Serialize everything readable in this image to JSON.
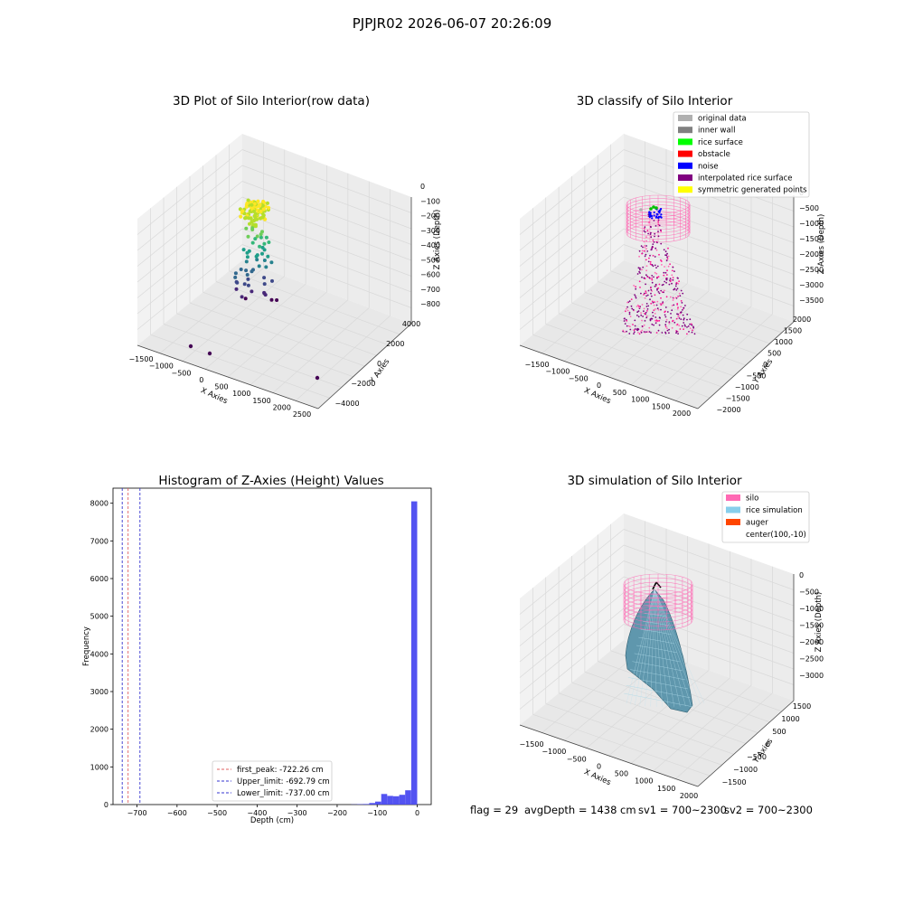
{
  "figure": {
    "suptitle": "PJPJR02 2026-06-07 20:26:09",
    "status": {
      "flag": "flag = 29",
      "avg_depth": "avgDepth = 1438 cm",
      "sv1": "sv1 = 700~2300",
      "sv2": "sv2 = 700~2300"
    }
  },
  "colors": {
    "pane": "#f2f2f2",
    "grid": "#d9d9d9",
    "hist_bar": "#4a4af0",
    "peak_line": "#e06060",
    "limit_line": "#3535d0",
    "silo": "#ff69b4",
    "rice_simulation": "#87ceeb",
    "auger": "#ff4500",
    "viridis_low": "#440154",
    "viridis_high": "#fde725"
  },
  "chart_data": [
    {
      "type": "scatter3d",
      "title": "3D Plot of Silo Interior(row data)",
      "xlabel": "X Axies",
      "ylabel": "Y Axies",
      "zlabel": "Z Axies (Depth)",
      "x_ticks": [
        "−1500",
        "−1000",
        "−500",
        "0",
        "500",
        "1000",
        "1500",
        "2000",
        "2500"
      ],
      "y_ticks": [
        "−4000",
        "−2000",
        "0",
        "2000",
        "4000"
      ],
      "z_ticks": [
        "0",
        "−100",
        "−200",
        "−300",
        "−400",
        "−500",
        "−600",
        "−700",
        "−800"
      ],
      "xlim": [
        -1500,
        2500
      ],
      "ylim": [
        -4000,
        4000
      ],
      "zlim": [
        -800,
        0
      ],
      "colormap": "viridis"
    },
    {
      "type": "scatter3d",
      "title": "3D classify of Silo Interior",
      "x_ticks": [
        "−1500",
        "−1000",
        "−500",
        "0",
        "500",
        "1000",
        "1500",
        "2000"
      ],
      "y_ticks": [
        "−2000",
        "−1500",
        "−1000",
        "−500",
        "0",
        "500",
        "1000",
        "1500",
        "2000"
      ],
      "z_ticks": [
        "0",
        "−500",
        "−1000",
        "−1500",
        "−2000",
        "−2500",
        "−3000",
        "−3500"
      ],
      "xlabel": "X Axies",
      "ylabel": "Y Axies",
      "zlabel": "Z Axies (Depth)",
      "legend": [
        {
          "label": "original data",
          "color": "#b0b0b0"
        },
        {
          "label": "inner wall",
          "color": "#808080"
        },
        {
          "label": "rice surface",
          "color": "#00ff00"
        },
        {
          "label": "obstacle",
          "color": "#ff0000"
        },
        {
          "label": "noise",
          "color": "#0000ff"
        },
        {
          "label": "interpolated rice surface",
          "color": "#800080"
        },
        {
          "label": "symmetric generated points",
          "color": "#ffff00"
        }
      ],
      "legend_loc": "upper right"
    },
    {
      "type": "histogram",
      "title": "Histogram of Z-Axies (Height) Values",
      "xlabel": "Depth (cm)",
      "ylabel": "Frequency",
      "xlim": [
        -760,
        35
      ],
      "ylim": [
        0,
        8400
      ],
      "x_ticks": [
        -700,
        -600,
        -500,
        -400,
        -300,
        -200,
        -100,
        0
      ],
      "y_ticks": [
        0,
        1000,
        2000,
        3000,
        4000,
        5000,
        6000,
        7000,
        8000
      ],
      "bin_width": 15,
      "bins": [
        {
          "x0": -165,
          "count": 5
        },
        {
          "x0": -150,
          "count": 10
        },
        {
          "x0": -135,
          "count": 15
        },
        {
          "x0": -120,
          "count": 40
        },
        {
          "x0": -105,
          "count": 80
        },
        {
          "x0": -90,
          "count": 280
        },
        {
          "x0": -75,
          "count": 230
        },
        {
          "x0": -60,
          "count": 220
        },
        {
          "x0": -45,
          "count": 260
        },
        {
          "x0": -30,
          "count": 380
        },
        {
          "x0": -15,
          "count": 8050
        }
      ],
      "vlines": [
        {
          "x": -722.26,
          "label": "first_peak: -722.26 cm",
          "style": "red-dashed"
        },
        {
          "x": -692.79,
          "label": "Upper_limit: -692.79 cm",
          "style": "blue-dashed"
        },
        {
          "x": -737.0,
          "label": "Lower_limit: -737.00 cm",
          "style": "blue-dashed"
        }
      ],
      "legend_loc": "lower center"
    },
    {
      "type": "surface3d",
      "title": "3D simulation of Silo Interior",
      "xlabel": "X Axies",
      "ylabel": "Y Axies",
      "zlabel": "Z Axies (Depth)",
      "x_ticks": [
        "−1500",
        "−1000",
        "−500",
        "0",
        "500",
        "1000",
        "1500",
        "2000"
      ],
      "y_ticks": [
        "−1500",
        "−1000",
        "−500",
        "0",
        "500",
        "1000",
        "1500"
      ],
      "z_ticks": [
        "0",
        "−500",
        "−1000",
        "−1500",
        "−2000",
        "−2500",
        "−3000"
      ],
      "legend": [
        {
          "label": "silo",
          "color": "#ff69b4"
        },
        {
          "label": "rice simulation",
          "color": "#87ceeb"
        },
        {
          "label": "auger",
          "color": "#ff4500"
        },
        {
          "label": "center(100,-10)",
          "color": ""
        }
      ],
      "legend_loc": "upper right"
    }
  ]
}
